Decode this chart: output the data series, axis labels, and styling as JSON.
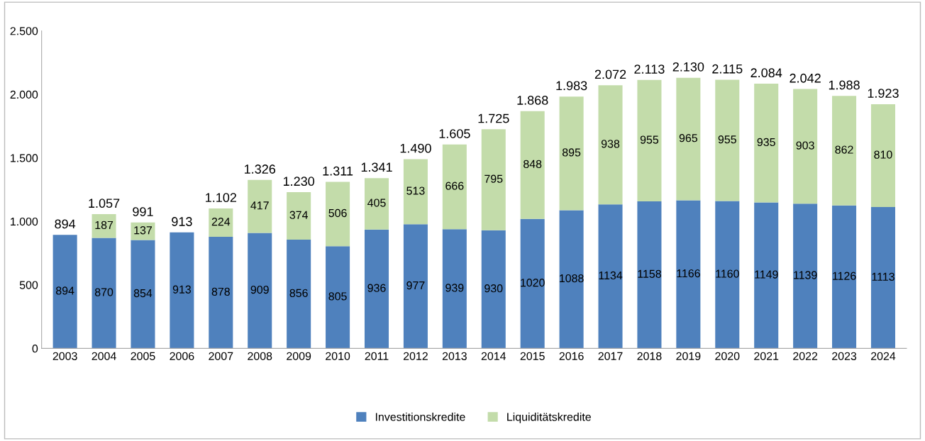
{
  "chart_data": {
    "type": "bar",
    "stacked": true,
    "categories": [
      "2003",
      "2004",
      "2005",
      "2006",
      "2007",
      "2008",
      "2009",
      "2010",
      "2011",
      "2012",
      "2013",
      "2014",
      "2015",
      "2016",
      "2017",
      "2018",
      "2019",
      "2020",
      "2021",
      "2022",
      "2023",
      "2024"
    ],
    "series": [
      {
        "name": "Investitionskredite",
        "color": "#4f81bd",
        "values": [
          894,
          870,
          854,
          913,
          878,
          909,
          856,
          805,
          936,
          977,
          939,
          930,
          1020,
          1088,
          1134,
          1158,
          1166,
          1160,
          1149,
          1139,
          1126,
          1113
        ]
      },
      {
        "name": "Liquiditätskredite",
        "color": "#c3dcaa",
        "values": [
          null,
          187,
          137,
          null,
          224,
          417,
          374,
          506,
          405,
          513,
          666,
          795,
          848,
          895,
          938,
          955,
          965,
          955,
          935,
          903,
          862,
          810
        ]
      }
    ],
    "data_labels": true,
    "totals": [
      "894",
      "1.057",
      "991",
      "913",
      "1.102",
      "1.326",
      "1.230",
      "1.311",
      "1.341",
      "1.490",
      "1.605",
      "1.725",
      "1.868",
      "1.983",
      "2.072",
      "2.113",
      "2.130",
      "2.115",
      "2.084",
      "2.042",
      "1.988",
      "1.923"
    ],
    "ylim": [
      0,
      2500
    ],
    "yticks": [
      0,
      500,
      {
        "value": 1000,
        "label": "1.000"
      },
      {
        "value": 1500,
        "label": "1.500"
      },
      {
        "value": 2000,
        "label": "2.000"
      },
      {
        "value": 2500,
        "label": "2.500"
      }
    ],
    "grid": false,
    "legend": "bottom"
  }
}
